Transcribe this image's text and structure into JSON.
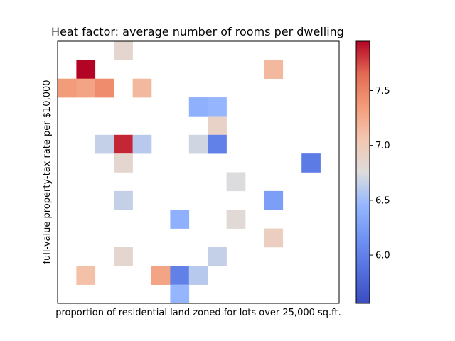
{
  "chart_data": {
    "type": "heatmap",
    "title": "Heat factor: average number of rooms per dwelling",
    "xlabel": "proportion of residential land zoned for lots over 25,000 sq.ft.",
    "ylabel": "full-value property-tax rate per $10,000",
    "colormap": "coolwarm",
    "color_range": [
      5.56,
      7.95
    ],
    "colorbar_ticks": [
      6.0,
      6.5,
      7.0,
      7.5
    ],
    "colorbar_tick_labels": [
      "6.0",
      "6.5",
      "7.0",
      "7.5"
    ],
    "grid_size": {
      "cols": 15,
      "rows": 14
    },
    "x_tick_labels": [],
    "y_tick_labels": [],
    "grid": false,
    "cells": [
      {
        "col": 3,
        "row": 0,
        "value": 6.85
      },
      {
        "col": 1,
        "row": 1,
        "value": 7.95
      },
      {
        "col": 11,
        "row": 1,
        "value": 7.15
      },
      {
        "col": 0,
        "row": 2,
        "value": 7.35
      },
      {
        "col": 1,
        "row": 2,
        "value": 7.3
      },
      {
        "col": 2,
        "row": 2,
        "value": 7.45
      },
      {
        "col": 4,
        "row": 2,
        "value": 7.15
      },
      {
        "col": 7,
        "row": 3,
        "value": 6.4
      },
      {
        "col": 8,
        "row": 3,
        "value": 6.45
      },
      {
        "col": 8,
        "row": 4,
        "value": 6.9
      },
      {
        "col": 3,
        "row": 5,
        "value": 7.85
      },
      {
        "col": 2,
        "row": 5,
        "value": 6.65
      },
      {
        "col": 4,
        "row": 5,
        "value": 6.6
      },
      {
        "col": 7,
        "row": 5,
        "value": 6.7
      },
      {
        "col": 8,
        "row": 5,
        "value": 6.0
      },
      {
        "col": 3,
        "row": 6,
        "value": 6.85
      },
      {
        "col": 13,
        "row": 6,
        "value": 5.95
      },
      {
        "col": 9,
        "row": 7,
        "value": 6.75
      },
      {
        "col": 3,
        "row": 8,
        "value": 6.65
      },
      {
        "col": 11,
        "row": 8,
        "value": 6.25
      },
      {
        "col": 6,
        "row": 9,
        "value": 6.4
      },
      {
        "col": 9,
        "row": 9,
        "value": 6.8
      },
      {
        "col": 11,
        "row": 10,
        "value": 6.95
      },
      {
        "col": 3,
        "row": 11,
        "value": 6.85
      },
      {
        "col": 8,
        "row": 11,
        "value": 6.65
      },
      {
        "col": 1,
        "row": 12,
        "value": 7.1
      },
      {
        "col": 5,
        "row": 12,
        "value": 7.3
      },
      {
        "col": 6,
        "row": 12,
        "value": 6.0
      },
      {
        "col": 7,
        "row": 12,
        "value": 6.6
      },
      {
        "col": 6,
        "row": 13,
        "value": 6.45
      }
    ],
    "note_rows_truncated": false
  }
}
